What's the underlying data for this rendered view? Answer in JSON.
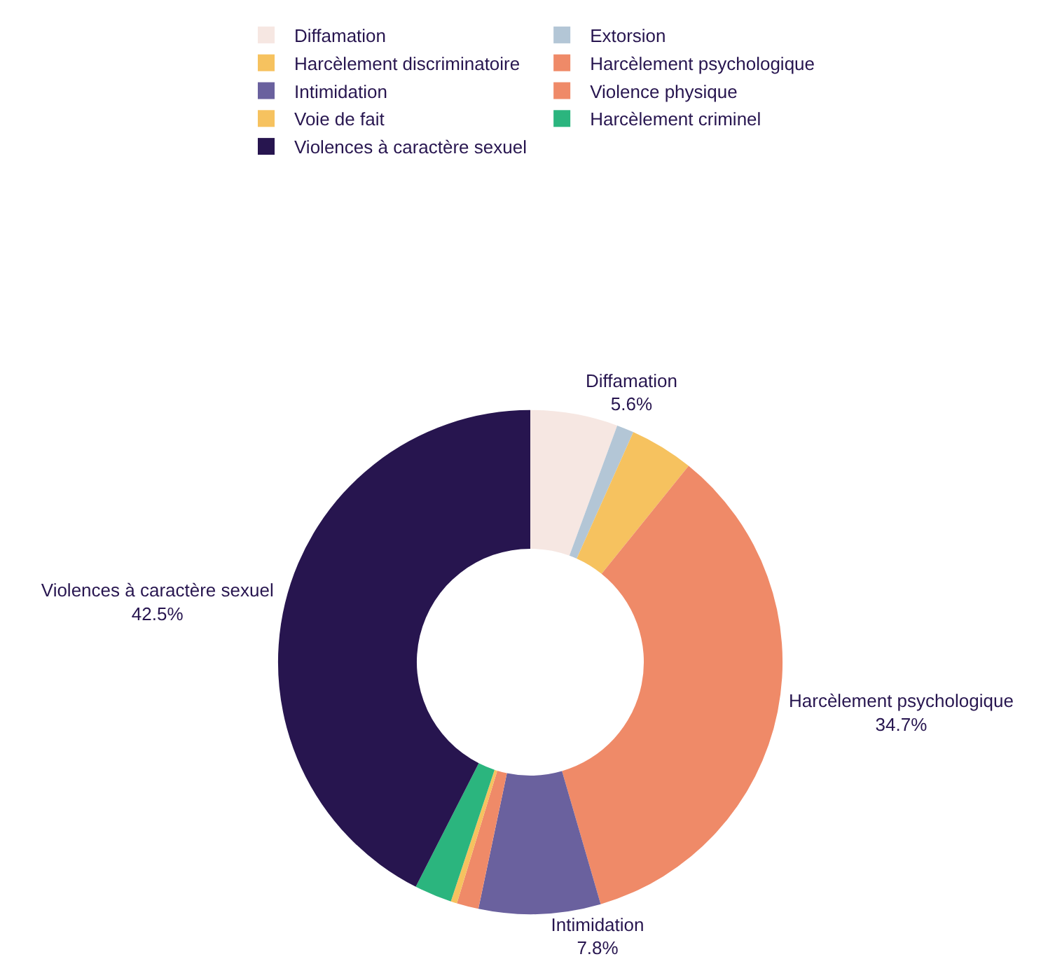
{
  "chart_data": {
    "type": "donut",
    "categories": [
      "Diffamation",
      "Extorsion",
      "Harcèlement discriminatoire",
      "Harcèlement psychologique",
      "Intimidation",
      "Violence physique",
      "Voie de fait",
      "Harcèlement criminel",
      "Violences à caractère sexuel"
    ],
    "values": [
      5.6,
      1.1,
      4.1,
      34.7,
      7.8,
      1.4,
      0.4,
      2.4,
      42.5
    ],
    "value_labels": [
      "5.6%",
      null,
      null,
      "34.7%",
      "7.8%",
      null,
      null,
      null,
      "42.5%"
    ],
    "colors": [
      "#f6e7e2",
      "#b3c6d6",
      "#f6c25f",
      "#ef8a68",
      "#6a619e",
      "#ef8a68",
      "#f6c25f",
      "#2bb57e",
      "#27154f"
    ],
    "legend": "top"
  }
}
